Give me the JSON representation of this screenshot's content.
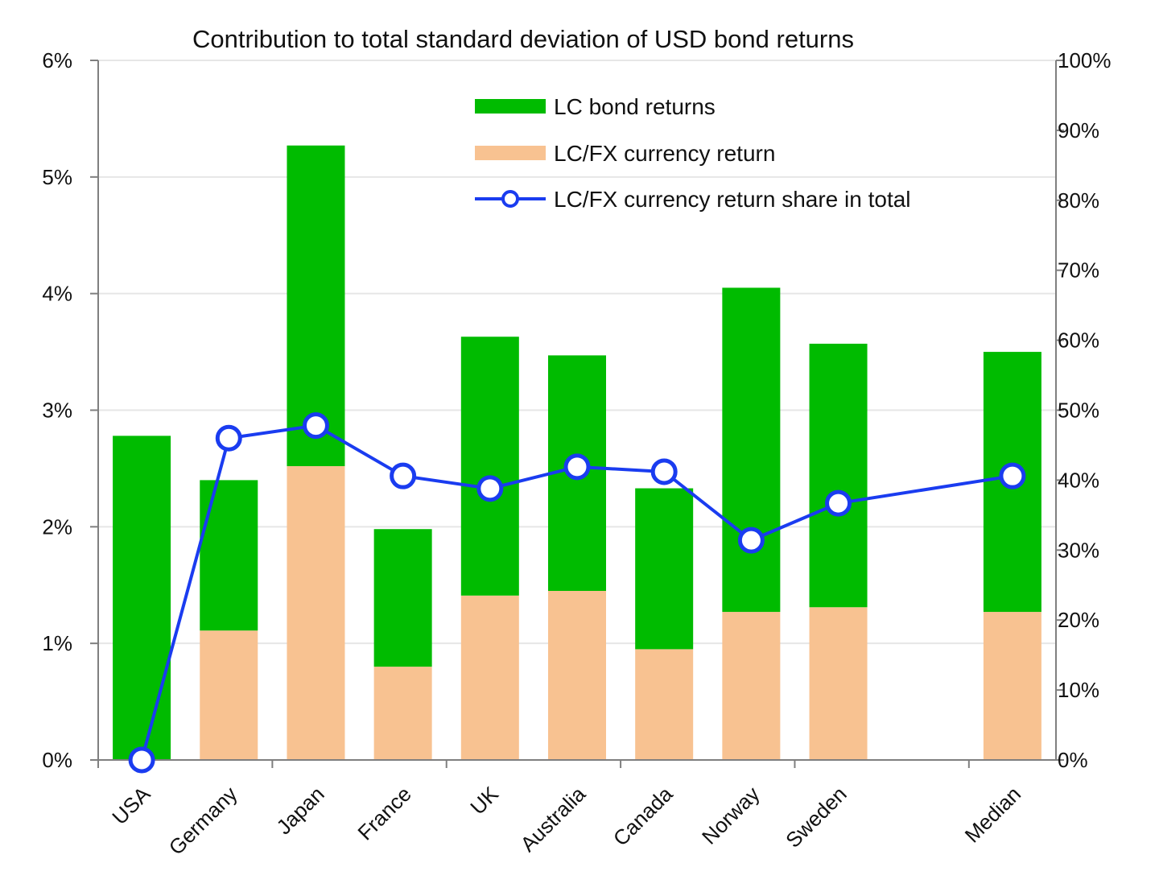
{
  "chart_data": {
    "type": "bar",
    "stacked": true,
    "title": "Contribution to total standard deviation of USD bond returns",
    "categories": [
      "USA",
      "Germany",
      "Japan",
      "France",
      "UK",
      "Australia",
      "Canada",
      "Norway",
      "Sweden",
      "Median"
    ],
    "category_slots": [
      0,
      1,
      2,
      3,
      4,
      5,
      6,
      7,
      8,
      10
    ],
    "slot_count": 11,
    "series": [
      {
        "name": "LC/FX currency return",
        "kind": "bar",
        "axis": "left",
        "color": "#f8c291",
        "values": [
          0.0,
          1.11,
          2.52,
          0.8,
          1.41,
          1.45,
          0.95,
          1.27,
          1.31,
          1.27
        ]
      },
      {
        "name": "LC bond returns",
        "kind": "bar",
        "axis": "left",
        "color": "#00bb00",
        "values": [
          2.78,
          1.29,
          2.75,
          1.18,
          2.22,
          2.02,
          1.38,
          2.78,
          2.26,
          2.23
        ]
      },
      {
        "name": "LC/FX currency return share in total",
        "kind": "line",
        "axis": "right",
        "color": "#1a3cf0",
        "values": [
          0,
          46.0,
          47.8,
          40.6,
          38.8,
          41.9,
          41.2,
          31.4,
          36.7,
          40.6
        ]
      }
    ],
    "legend": {
      "position": "top-center",
      "order": [
        "LC bond returns",
        "LC/FX currency return",
        "LC/FX currency return share in total"
      ]
    },
    "y_left": {
      "min": 0,
      "max": 6,
      "step": 1,
      "tick_labels": [
        "0%",
        "1%",
        "2%",
        "3%",
        "4%",
        "5%",
        "6%"
      ]
    },
    "y_right": {
      "min": 0,
      "max": 100,
      "step": 10,
      "tick_labels": [
        "0%",
        "10%",
        "20%",
        "30%",
        "40%",
        "50%",
        "60%",
        "70%",
        "80%",
        "90%",
        "100%"
      ]
    },
    "grid": true,
    "xlabel": "",
    "ylabel": ""
  }
}
